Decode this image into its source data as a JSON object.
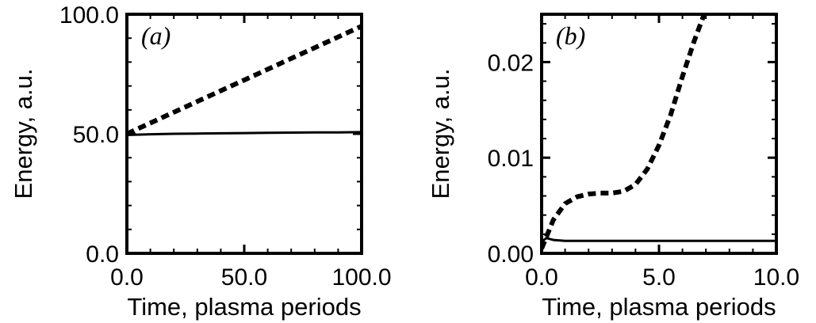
{
  "chart_data": [
    {
      "type": "line",
      "panel_label": "(a)",
      "xlabel": "Time, plasma periods",
      "ylabel": "Energy, a.u.",
      "xlim": [
        0,
        100
      ],
      "ylim": [
        0,
        100
      ],
      "x_ticks": [
        0,
        50,
        100
      ],
      "x_tick_labels": [
        "0.0",
        "50.0",
        "100.0"
      ],
      "y_ticks": [
        0,
        50,
        100
      ],
      "y_tick_labels": [
        "0.0",
        "50.0",
        "100.0"
      ],
      "grid": false,
      "series": [
        {
          "style": "dashed",
          "x": [
            0,
            10,
            20,
            30,
            40,
            50,
            60,
            70,
            80,
            90,
            100
          ],
          "y": [
            50,
            54.5,
            59,
            63.5,
            68,
            72.5,
            77,
            81.5,
            86,
            90.5,
            95
          ]
        },
        {
          "style": "solid",
          "x": [
            0,
            10,
            20,
            30,
            40,
            50,
            60,
            70,
            80,
            90,
            100
          ],
          "y": [
            49.5,
            49.8,
            50,
            50.1,
            50.2,
            50.3,
            50.4,
            50.5,
            50.6,
            50.6,
            50.7
          ]
        }
      ]
    },
    {
      "type": "line",
      "panel_label": "(b)",
      "xlabel": "Time, plasma periods",
      "ylabel": "Energy, a.u.",
      "xlim": [
        0,
        10
      ],
      "ylim": [
        0,
        0.025
      ],
      "x_ticks": [
        0,
        5,
        10
      ],
      "x_tick_labels": [
        "0.0",
        "5.0",
        "10.0"
      ],
      "y_ticks": [
        0,
        0.01,
        0.02
      ],
      "y_tick_labels": [
        "0.00",
        "0.01",
        "0.02"
      ],
      "grid": false,
      "series": [
        {
          "style": "dashed",
          "x": [
            0,
            0.5,
            1,
            1.5,
            2,
            2.5,
            3,
            3.5,
            4,
            4.5,
            5,
            5.5,
            6,
            6.5,
            7
          ],
          "y": [
            0.0005,
            0.0035,
            0.0052,
            0.0059,
            0.0062,
            0.0063,
            0.0063,
            0.0065,
            0.0072,
            0.0088,
            0.0113,
            0.0145,
            0.0185,
            0.0222,
            0.0255
          ]
        },
        {
          "style": "solid",
          "x": [
            0,
            0.2,
            0.5,
            1,
            2,
            3,
            4,
            5,
            6,
            7,
            8,
            9,
            10
          ],
          "y": [
            0.0012,
            0.0016,
            0.0014,
            0.0013,
            0.0013,
            0.0013,
            0.0013,
            0.0013,
            0.0013,
            0.0013,
            0.0013,
            0.0013,
            0.0013
          ]
        }
      ]
    }
  ]
}
